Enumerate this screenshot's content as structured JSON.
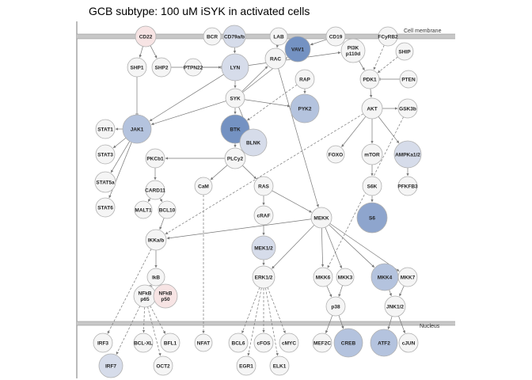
{
  "title": "GCB subtype: 100 uM iSYK in activated cells",
  "regions": {
    "membrane": "Cell membrane",
    "nucleus": "Nucleus"
  },
  "colors": {
    "neutral": "#f5f5f5",
    "light_blue": "#d6dcea",
    "mid_blue": "#b4c3de",
    "strong_blue": "#8ea5cd",
    "dark_blue": "#7492c2",
    "light_red": "#f7e4e4",
    "edge": "#777777",
    "membrane": "#c8c8c8"
  },
  "nodes": [
    {
      "id": "CD22",
      "label": "CD22",
      "color": "light_red"
    },
    {
      "id": "BCR",
      "label": "BCR",
      "color": "neutral"
    },
    {
      "id": "CD79ab",
      "label": "CD79a/b",
      "color": "light_blue"
    },
    {
      "id": "LAB",
      "label": "LAB",
      "color": "neutral"
    },
    {
      "id": "VAV1",
      "label": "VAV1",
      "color": "dark_blue"
    },
    {
      "id": "CD19",
      "label": "CD19",
      "color": "neutral"
    },
    {
      "id": "FCyRB2",
      "label": "FCyRB2",
      "color": "neutral"
    },
    {
      "id": "SHP1",
      "label": "SHP1",
      "color": "neutral"
    },
    {
      "id": "SHP2",
      "label": "SHP2",
      "color": "neutral"
    },
    {
      "id": "PTPN22",
      "label": "PTPN22",
      "color": "neutral"
    },
    {
      "id": "LYN",
      "label": "LYN",
      "color": "light_blue"
    },
    {
      "id": "RAC",
      "label": "RAC",
      "color": "neutral"
    },
    {
      "id": "PI3K",
      "label": "PI3K p110d",
      "color": "neutral"
    },
    {
      "id": "SHIP",
      "label": "SHIP",
      "color": "neutral"
    },
    {
      "id": "RAP",
      "label": "RAP",
      "color": "neutral"
    },
    {
      "id": "PDK1",
      "label": "PDK1",
      "color": "neutral"
    },
    {
      "id": "PTEN",
      "label": "PTEN",
      "color": "neutral"
    },
    {
      "id": "SYK",
      "label": "SYK",
      "color": "neutral"
    },
    {
      "id": "PYK2",
      "label": "PYK2",
      "color": "mid_blue"
    },
    {
      "id": "AKT",
      "label": "AKT",
      "color": "neutral"
    },
    {
      "id": "GSK3b",
      "label": "GSK3b",
      "color": "neutral"
    },
    {
      "id": "STAT1",
      "label": "STAT1",
      "color": "neutral"
    },
    {
      "id": "JAK1",
      "label": "JAK1",
      "color": "mid_blue"
    },
    {
      "id": "BTK",
      "label": "BTK",
      "color": "dark_blue"
    },
    {
      "id": "BLNK",
      "label": "BLNK",
      "color": "light_blue"
    },
    {
      "id": "FOXO",
      "label": "FOXO",
      "color": "neutral"
    },
    {
      "id": "mTOR",
      "label": "mTOR",
      "color": "neutral"
    },
    {
      "id": "AMPKa12",
      "label": "AMPKa1/2",
      "color": "light_blue"
    },
    {
      "id": "STAT3",
      "label": "STAT3",
      "color": "neutral"
    },
    {
      "id": "PKCb1",
      "label": "PKCb1",
      "color": "neutral"
    },
    {
      "id": "PLCy2",
      "label": "PLCy2",
      "color": "neutral"
    },
    {
      "id": "STAT5a",
      "label": "STAT5a",
      "color": "neutral"
    },
    {
      "id": "CARD11",
      "label": "CARD11",
      "color": "neutral"
    },
    {
      "id": "CaM",
      "label": "CaM",
      "color": "neutral"
    },
    {
      "id": "RAS",
      "label": "RAS",
      "color": "neutral"
    },
    {
      "id": "S6K",
      "label": "S6K",
      "color": "neutral"
    },
    {
      "id": "PFKFB3",
      "label": "PFKFB3",
      "color": "neutral"
    },
    {
      "id": "STAT6",
      "label": "STAT6",
      "color": "neutral"
    },
    {
      "id": "MALT1",
      "label": "MALT1",
      "color": "neutral"
    },
    {
      "id": "BCL10",
      "label": "BCL10",
      "color": "neutral"
    },
    {
      "id": "cRAF",
      "label": "cRAF",
      "color": "neutral"
    },
    {
      "id": "MEKK",
      "label": "MEKK",
      "color": "neutral"
    },
    {
      "id": "S6",
      "label": "S6",
      "color": "strong_blue"
    },
    {
      "id": "IKKab",
      "label": "IKKa/b",
      "color": "neutral"
    },
    {
      "id": "MEK12",
      "label": "MEK1/2",
      "color": "light_blue"
    },
    {
      "id": "IkB",
      "label": "IkB",
      "color": "neutral"
    },
    {
      "id": "ERK12",
      "label": "ERK1/2",
      "color": "neutral"
    },
    {
      "id": "MKK6",
      "label": "MKK6",
      "color": "neutral"
    },
    {
      "id": "MKK3",
      "label": "MKK3",
      "color": "neutral"
    },
    {
      "id": "MKK4",
      "label": "MKK4",
      "color": "mid_blue"
    },
    {
      "id": "MKK7",
      "label": "MKK7",
      "color": "neutral"
    },
    {
      "id": "NFkBp65",
      "label": "NFkB p65",
      "color": "neutral"
    },
    {
      "id": "NFkBp50",
      "label": "NFkB p50",
      "color": "light_red"
    },
    {
      "id": "p38",
      "label": "p38",
      "color": "neutral"
    },
    {
      "id": "JNK12",
      "label": "JNK1/2",
      "color": "neutral"
    },
    {
      "id": "IRF3",
      "label": "IRF3",
      "color": "neutral"
    },
    {
      "id": "BCLXL",
      "label": "BCL-XL",
      "color": "neutral"
    },
    {
      "id": "BFL1",
      "label": "BFL1",
      "color": "neutral"
    },
    {
      "id": "NFAT",
      "label": "NFAT",
      "color": "neutral"
    },
    {
      "id": "BCL6",
      "label": "BCL6",
      "color": "neutral"
    },
    {
      "id": "cFOS",
      "label": "cFOS",
      "color": "neutral"
    },
    {
      "id": "cMYC",
      "label": "cMYC",
      "color": "neutral"
    },
    {
      "id": "MEF2C",
      "label": "MEF2C",
      "color": "neutral"
    },
    {
      "id": "CREB",
      "label": "CREB",
      "color": "mid_blue"
    },
    {
      "id": "ATF2",
      "label": "ATF2",
      "color": "mid_blue"
    },
    {
      "id": "cJUN",
      "label": "cJUN",
      "color": "neutral"
    },
    {
      "id": "IRF7",
      "label": "IRF7",
      "color": "light_blue"
    },
    {
      "id": "OCT2",
      "label": "OCT2",
      "color": "neutral"
    },
    {
      "id": "EGR1",
      "label": "EGR1",
      "color": "neutral"
    },
    {
      "id": "ELK1",
      "label": "ELK1",
      "color": "neutral"
    }
  ],
  "edges": [
    {
      "from": "CD22",
      "to": "SHP1",
      "type": "solid"
    },
    {
      "from": "CD22",
      "to": "SHP2",
      "type": "solid"
    },
    {
      "from": "SHP1",
      "to": "JAK1",
      "type": "inhibit"
    },
    {
      "from": "SHP2",
      "to": "LYN",
      "type": "solid"
    },
    {
      "from": "PTPN22",
      "to": "LYN",
      "type": "inhibit"
    },
    {
      "from": "CD79ab",
      "to": "LYN",
      "type": "solid"
    },
    {
      "from": "LYN",
      "to": "SYK",
      "type": "solid"
    },
    {
      "from": "LYN",
      "to": "PI3K",
      "type": "solid"
    },
    {
      "from": "LYN",
      "to": "JAK1",
      "type": "solid"
    },
    {
      "from": "SYK",
      "to": "BTK",
      "type": "solid"
    },
    {
      "from": "SYK",
      "to": "BLNK",
      "type": "solid"
    },
    {
      "from": "SYK",
      "to": "JAK1",
      "type": "solid"
    },
    {
      "from": "SYK",
      "to": "VAV1",
      "type": "solid"
    },
    {
      "from": "SYK",
      "to": "PYK2",
      "type": "solid"
    },
    {
      "from": "SYK",
      "to": "RAC",
      "type": "solid"
    },
    {
      "from": "LAB",
      "to": "RAC",
      "type": "solid"
    },
    {
      "from": "VAV1",
      "to": "RAC",
      "type": "solid"
    },
    {
      "from": "RAC",
      "to": "MEKK",
      "type": "solid"
    },
    {
      "from": "RAP",
      "to": "PYK2",
      "type": "solid"
    },
    {
      "from": "RAP",
      "to": "BTK",
      "type": "dashed"
    },
    {
      "from": "CD19",
      "to": "PI3K",
      "type": "solid"
    },
    {
      "from": "CD19",
      "to": "VAV1",
      "type": "solid"
    },
    {
      "from": "FCyRB2",
      "to": "PDK1",
      "type": "dashed"
    },
    {
      "from": "PI3K",
      "to": "PDK1",
      "type": "solid"
    },
    {
      "from": "SHIP",
      "to": "PDK1",
      "type": "dashed"
    },
    {
      "from": "PTEN",
      "to": "PDK1",
      "type": "inhibit"
    },
    {
      "from": "PDK1",
      "to": "AKT",
      "type": "solid"
    },
    {
      "from": "AKT",
      "to": "GSK3b",
      "type": "solid"
    },
    {
      "from": "AKT",
      "to": "FOXO",
      "type": "solid"
    },
    {
      "from": "AKT",
      "to": "mTOR",
      "type": "solid"
    },
    {
      "from": "AKT",
      "to": "AMPKa12",
      "type": "solid"
    },
    {
      "from": "AKT",
      "to": "IKKab",
      "type": "dashed"
    },
    {
      "from": "GSK3b",
      "to": "MKK6",
      "type": "dashed"
    },
    {
      "from": "mTOR",
      "to": "S6K",
      "type": "solid"
    },
    {
      "from": "S6K",
      "to": "S6",
      "type": "solid"
    },
    {
      "from": "AMPKa12",
      "to": "PFKFB3",
      "type": "solid"
    },
    {
      "from": "JAK1",
      "to": "STAT1",
      "type": "solid"
    },
    {
      "from": "JAK1",
      "to": "STAT3",
      "type": "solid"
    },
    {
      "from": "JAK1",
      "to": "STAT5a",
      "type": "solid"
    },
    {
      "from": "JAK1",
      "to": "STAT6",
      "type": "solid"
    },
    {
      "from": "BTK",
      "to": "PLCy2",
      "type": "solid"
    },
    {
      "from": "BLNK",
      "to": "PLCy2",
      "type": "solid"
    },
    {
      "from": "PLCy2",
      "to": "PKCb1",
      "type": "solid"
    },
    {
      "from": "PLCy2",
      "to": "CaM",
      "type": "solid"
    },
    {
      "from": "PLCy2",
      "to": "RAS",
      "type": "solid"
    },
    {
      "from": "PKCb1",
      "to": "CARD11",
      "type": "solid"
    },
    {
      "from": "CARD11",
      "to": "MALT1",
      "type": "solid"
    },
    {
      "from": "CARD11",
      "to": "BCL10",
      "type": "solid"
    },
    {
      "from": "BCL10",
      "to": "IKKab",
      "type": "solid"
    },
    {
      "from": "CaM",
      "to": "NFAT",
      "type": "dashed"
    },
    {
      "from": "RAS",
      "to": "cRAF",
      "type": "solid"
    },
    {
      "from": "RAS",
      "to": "MEKK",
      "type": "solid"
    },
    {
      "from": "cRAF",
      "to": "MEK12",
      "type": "solid"
    },
    {
      "from": "MEK12",
      "to": "ERK12",
      "type": "solid"
    },
    {
      "from": "MEKK",
      "to": "MKK6",
      "type": "solid"
    },
    {
      "from": "MEKK",
      "to": "MKK3",
      "type": "solid"
    },
    {
      "from": "MEKK",
      "to": "MKK4",
      "type": "solid"
    },
    {
      "from": "MEKK",
      "to": "MKK7",
      "type": "solid"
    },
    {
      "from": "MEKK",
      "to": "IKKab",
      "type": "solid"
    },
    {
      "from": "MEKK",
      "to": "ERK12",
      "type": "solid"
    },
    {
      "from": "IKKab",
      "to": "IkB",
      "type": "solid"
    },
    {
      "from": "IKKab",
      "to": "IRF3",
      "type": "dashed"
    },
    {
      "from": "IkB",
      "to": "NFkBp65",
      "type": "inhibit"
    },
    {
      "from": "NFkBp65",
      "to": "BCLXL",
      "type": "dashed"
    },
    {
      "from": "NFkBp65",
      "to": "BFL1",
      "type": "dashed"
    },
    {
      "from": "NFkBp65",
      "to": "OCT2",
      "type": "dashed"
    },
    {
      "from": "NFkBp65",
      "to": "IRF7",
      "type": "dashed"
    },
    {
      "from": "ERK12",
      "to": "BCL6",
      "type": "dashed"
    },
    {
      "from": "ERK12",
      "to": "cFOS",
      "type": "dashed"
    },
    {
      "from": "ERK12",
      "to": "cMYC",
      "type": "dashed"
    },
    {
      "from": "ERK12",
      "to": "EGR1",
      "type": "dashed"
    },
    {
      "from": "ERK12",
      "to": "ELK1",
      "type": "dashed"
    },
    {
      "from": "MKK6",
      "to": "p38",
      "type": "solid"
    },
    {
      "from": "MKK3",
      "to": "p38",
      "type": "solid"
    },
    {
      "from": "MKK4",
      "to": "JNK12",
      "type": "solid"
    },
    {
      "from": "MKK7",
      "to": "JNK12",
      "type": "solid"
    },
    {
      "from": "p38",
      "to": "MEF2C",
      "type": "solid"
    },
    {
      "from": "p38",
      "to": "CREB",
      "type": "solid"
    },
    {
      "from": "JNK12",
      "to": "ATF2",
      "type": "solid"
    },
    {
      "from": "JNK12",
      "to": "cJUN",
      "type": "solid"
    }
  ]
}
